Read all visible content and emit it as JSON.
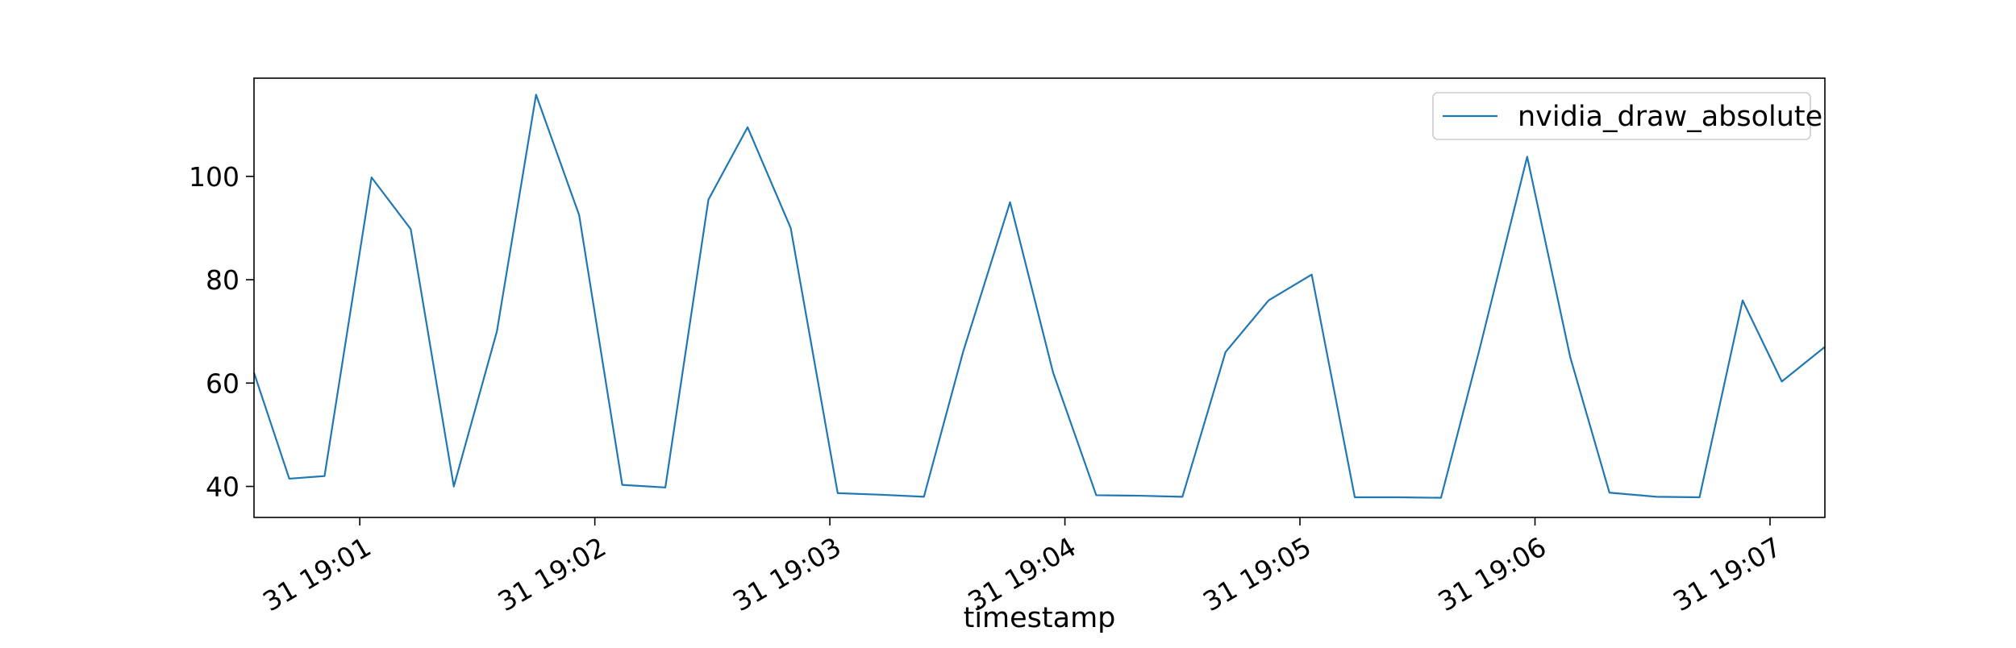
{
  "chart_data": {
    "type": "line",
    "title": "",
    "xlabel": "timestamp",
    "ylabel": "",
    "x_tick_labels": [
      "31 19:01",
      "31 19:02",
      "31 19:03",
      "31 19:04",
      "31 19:05",
      "31 19:06",
      "31 19:07"
    ],
    "y_tick_labels": [
      "40",
      "60",
      "80",
      "100"
    ],
    "y_ticks": [
      40,
      60,
      80,
      100
    ],
    "xlim": [
      "19:00:33",
      "19:07:14"
    ],
    "ylim": [
      34,
      119
    ],
    "grid": false,
    "legend_position": "top-right",
    "series": [
      {
        "name": "nvidia_draw_absolute",
        "color": "#1f77b4",
        "x": [
          "19:00:33",
          "19:00:42",
          "19:00:51",
          "19:01:03",
          "19:01:13",
          "19:01:24",
          "19:01:35",
          "19:01:45",
          "19:01:56",
          "19:02:07",
          "19:02:18",
          "19:02:29",
          "19:02:39",
          "19:02:50",
          "19:03:02",
          "19:03:13",
          "19:03:24",
          "19:03:34",
          "19:03:46",
          "19:03:57",
          "19:04:08",
          "19:04:19",
          "19:04:30",
          "19:04:41",
          "19:04:52",
          "19:05:03",
          "19:05:14",
          "19:05:25",
          "19:05:36",
          "19:05:46",
          "19:05:58",
          "19:06:09",
          "19:06:19",
          "19:06:31",
          "19:06:42",
          "19:06:53",
          "19:07:03",
          "19:07:14"
        ],
        "values": [
          62,
          41.5,
          42,
          99.8,
          89.8,
          40,
          70,
          115.8,
          92.5,
          40.3,
          39.8,
          95.5,
          109.5,
          90,
          38.7,
          38.4,
          38,
          66,
          95,
          62,
          38.3,
          38.2,
          38,
          66,
          76,
          81,
          37.9,
          37.9,
          37.8,
          67,
          103.8,
          65,
          38.8,
          38,
          37.9,
          76,
          60.3,
          67
        ]
      }
    ]
  }
}
